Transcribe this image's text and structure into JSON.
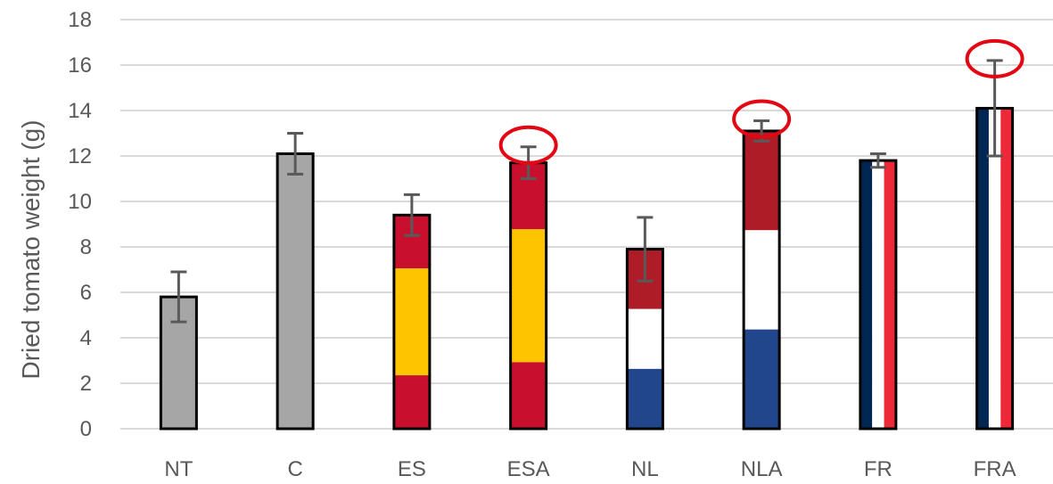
{
  "chart_data": {
    "type": "bar",
    "ylabel": "Dried tomato weight (g)",
    "xlabel": "",
    "ylim": [
      0,
      18
    ],
    "yticks": [
      0,
      2,
      4,
      6,
      8,
      10,
      12,
      14,
      16,
      18
    ],
    "grid": true,
    "categories": [
      "NT",
      "C",
      "ES",
      "ESA",
      "NL",
      "NLA",
      "FR",
      "FRA"
    ],
    "values": [
      5.8,
      12.1,
      9.4,
      11.7,
      7.9,
      13.1,
      11.8,
      14.1
    ],
    "error": [
      1.1,
      0.9,
      0.9,
      0.7,
      1.4,
      0.45,
      0.3,
      2.1
    ],
    "bar_style": [
      "solid",
      "solid",
      "spain",
      "spain",
      "netherlands",
      "netherlands",
      "france",
      "france"
    ],
    "highlighted": [
      "ESA",
      "NLA",
      "FRA"
    ],
    "colors": {
      "gray": "#a6a6a6",
      "spain_red": "#c8102e",
      "spain_yellow": "#ffc400",
      "nl_red": "#ae1c28",
      "nl_white": "#ffffff",
      "nl_blue": "#21468b",
      "fr_blue": "#002654",
      "fr_white": "#ffffff",
      "fr_red": "#ed2939",
      "highlight": "#e30613",
      "error": "#595959",
      "grid": "#d9d9d9"
    }
  }
}
